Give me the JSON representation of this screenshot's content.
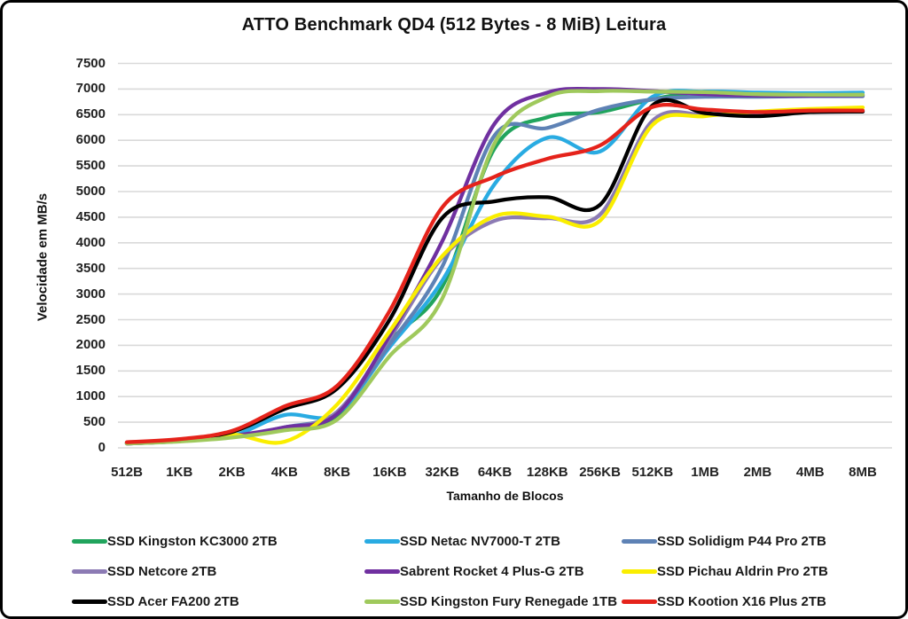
{
  "title": "ATTO Benchmark QD4 (512 Bytes - 8 MiB) Leitura",
  "chart_data": {
    "type": "line",
    "title": "ATTO Benchmark QD4 (512 Bytes - 8 MiB) Leitura",
    "xlabel": "Tamanho de Blocos",
    "ylabel": "Velocidade em MB/s",
    "ylim": [
      0,
      7500
    ],
    "ytick_step": 500,
    "grid": "horizontal",
    "grid_color": "#D9D9D9",
    "legend_position": "bottom",
    "categories": [
      "512B",
      "1KB",
      "2KB",
      "4KB",
      "8KB",
      "16KB",
      "32KB",
      "64KB",
      "128KB",
      "256KB",
      "512KB",
      "1MB",
      "2MB",
      "4MB",
      "8MB"
    ],
    "series": [
      {
        "name": "SSD Kingston KC3000 2TB",
        "color": "#21A45D",
        "values": [
          85,
          130,
          210,
          350,
          600,
          2070,
          3140,
          5850,
          6450,
          6550,
          6800,
          6950,
          6900,
          6880,
          6880
        ]
      },
      {
        "name": "SSD Netac NV7000-T 2TB",
        "color": "#29ABE2",
        "values": [
          90,
          140,
          230,
          640,
          670,
          1965,
          3260,
          5150,
          6050,
          5780,
          6850,
          6950,
          6930,
          6920,
          6930
        ]
      },
      {
        "name": "SSD Solidigm P44 Pro 2TB",
        "color": "#5E82B5",
        "values": [
          85,
          130,
          220,
          400,
          690,
          2015,
          3535,
          6100,
          6240,
          6600,
          6800,
          6850,
          6850,
          6860,
          6860
        ]
      },
      {
        "name": "SSD Netcore 2TB",
        "color": "#8C7BB4",
        "values": [
          85,
          130,
          220,
          380,
          700,
          2135,
          3710,
          4430,
          4480,
          4550,
          6380,
          6500,
          6530,
          6550,
          6560
        ]
      },
      {
        "name": "Sabrent Rocket 4 Plus-G 2TB",
        "color": "#7030A0",
        "values": [
          85,
          130,
          230,
          400,
          660,
          2190,
          4030,
          6330,
          6930,
          7000,
          6960,
          6900,
          6870,
          6870,
          6880
        ]
      },
      {
        "name": "SSD Pichau Aldrin Pro 2TB",
        "color": "#FAEE00",
        "values": [
          90,
          140,
          260,
          120,
          845,
          2275,
          3740,
          4520,
          4510,
          4430,
          6300,
          6470,
          6560,
          6610,
          6640
        ]
      },
      {
        "name": "SSD Acer FA200 2TB",
        "color": "#000000",
        "values": [
          100,
          160,
          310,
          760,
          1155,
          2500,
          4485,
          4810,
          4890,
          4740,
          6680,
          6530,
          6470,
          6550,
          6560
        ]
      },
      {
        "name": "SSD Kingston Fury Renegade 1TB",
        "color": "#9FC95C",
        "values": [
          85,
          125,
          200,
          340,
          550,
          1790,
          2910,
          5950,
          6850,
          6960,
          6950,
          6940,
          6900,
          6890,
          6890
        ]
      },
      {
        "name": "SSD Kootion X16 Plus 2TB",
        "color": "#E5231B",
        "values": [
          110,
          170,
          330,
          810,
          1210,
          2670,
          4690,
          5290,
          5640,
          5900,
          6650,
          6600,
          6550,
          6580,
          6580
        ]
      }
    ]
  }
}
